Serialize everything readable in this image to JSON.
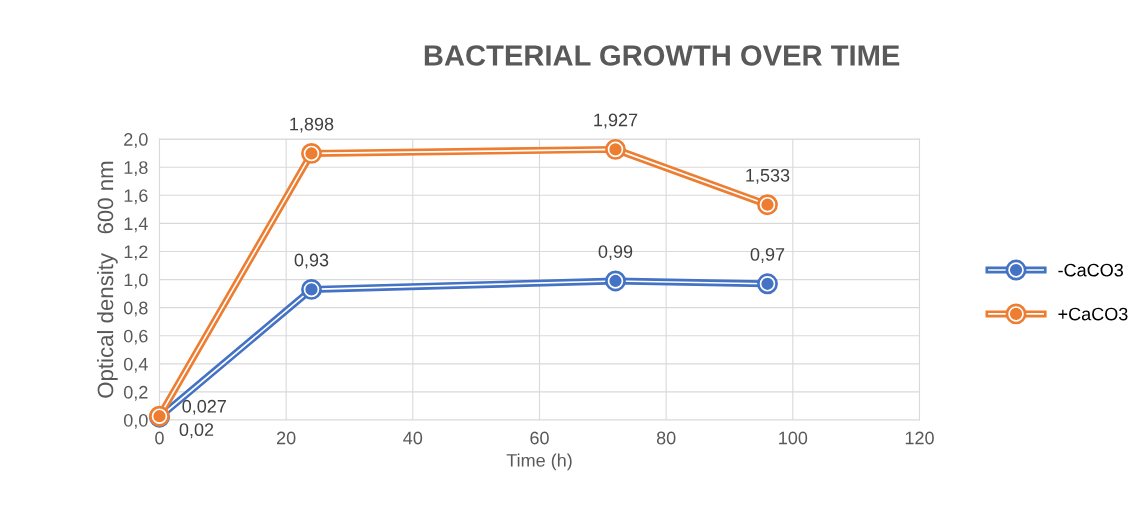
{
  "chart_data": {
    "type": "line",
    "title": "BACTERIAL GROWTH OVER TIME",
    "xlabel": "Time (h)",
    "ylabel": "Optical density   600 nm",
    "x": [
      0,
      24,
      72,
      96
    ],
    "series": [
      {
        "name": "-CaCO3",
        "color": "#4472c4",
        "values": [
          0.02,
          0.93,
          0.99,
          0.97
        ],
        "value_labels": [
          "0,02",
          "0,93",
          "0,99",
          "0,97"
        ]
      },
      {
        "name": "+CaCO3",
        "color": "#ed7d31",
        "values": [
          0.027,
          1.898,
          1.927,
          1.533
        ],
        "value_labels": [
          "0,027",
          "1,898",
          "1,927",
          "1,533"
        ]
      }
    ],
    "xlim": [
      0,
      120
    ],
    "xticks": [
      0,
      20,
      40,
      60,
      80,
      100,
      120
    ],
    "ylim": [
      0,
      2.0
    ],
    "yticks": [
      {
        "value": 0,
        "label": "0,0"
      },
      {
        "value": 0.2,
        "label": "0,2"
      },
      {
        "value": 0.4,
        "label": "0,4"
      },
      {
        "value": 0.6,
        "label": "0,6"
      },
      {
        "value": 0.8,
        "label": "0,8"
      },
      {
        "value": 1.0,
        "label": "1,0"
      },
      {
        "value": 1.2,
        "label": "1,2"
      },
      {
        "value": 1.4,
        "label": "1,4"
      },
      {
        "value": 1.6,
        "label": "1,6"
      },
      {
        "value": 1.8,
        "label": "1,8"
      },
      {
        "value": 2.0,
        "label": "2,0"
      }
    ],
    "grid": true,
    "legend": "right",
    "marker": "circle",
    "line_style": "solid"
  }
}
